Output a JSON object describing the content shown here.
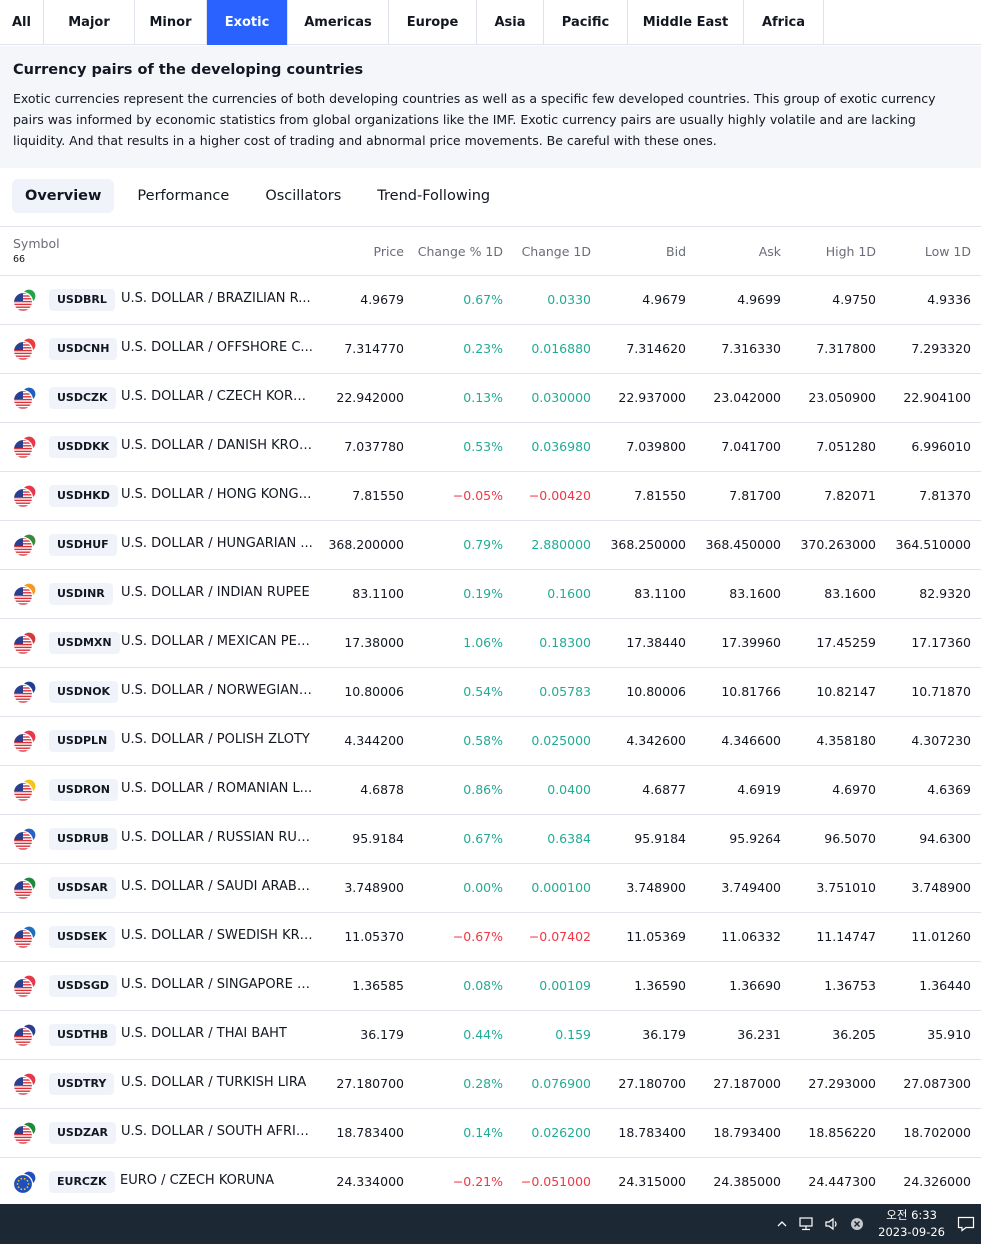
{
  "region_tabs": [
    {
      "label": "All"
    },
    {
      "label": "Major"
    },
    {
      "label": "Minor"
    },
    {
      "label": "Exotic"
    },
    {
      "label": "Americas"
    },
    {
      "label": "Europe"
    },
    {
      "label": "Asia"
    },
    {
      "label": "Pacific"
    },
    {
      "label": "Middle East"
    },
    {
      "label": "Africa"
    }
  ],
  "active_region": "Exotic",
  "description": {
    "title": "Currency pairs of the developing countries",
    "text": "Exotic currencies represent the currencies of both developing countries as well as a specific few developed countries. This group of exotic currency pairs was informed by economic statistics from global organizations like the IMF. Exotic currency pairs are usually highly volatile and are lacking liquidity. And that results in a higher cost of trading and abnormal price movements. Be careful with these ones."
  },
  "view_tabs": [
    {
      "label": "Overview"
    },
    {
      "label": "Performance"
    },
    {
      "label": "Oscillators"
    },
    {
      "label": "Trend-Following"
    }
  ],
  "active_view": "Overview",
  "table": {
    "symbol_header": "Symbol",
    "symbol_count": "66",
    "columns": [
      "Price",
      "Change % 1D",
      "Change 1D",
      "Bid",
      "Ask",
      "High 1D",
      "Low 1D"
    ],
    "rows": [
      {
        "ticker": "USDBRL",
        "name": "U.S. DOLLAR / BRAZILIAN R...",
        "price": "4.9679",
        "chg_pct": "0.67%",
        "chg": "0.0330",
        "bid": "4.9679",
        "ask": "4.9699",
        "high": "4.9750",
        "low": "4.9336",
        "dir": "up",
        "flag_color": "#22a548"
      },
      {
        "ticker": "USDCNH",
        "name": "U.S. DOLLAR / OFFSHORE C...",
        "price": "7.314770",
        "chg_pct": "0.23%",
        "chg": "0.016880",
        "bid": "7.314620",
        "ask": "7.316330",
        "high": "7.317800",
        "low": "7.293320",
        "dir": "up",
        "flag_color": "#ee3a3a"
      },
      {
        "ticker": "USDCZK",
        "name": "U.S. DOLLAR / CZECH KORU...",
        "price": "22.942000",
        "chg_pct": "0.13%",
        "chg": "0.030000",
        "bid": "22.937000",
        "ask": "23.042000",
        "high": "23.050900",
        "low": "22.904100",
        "dir": "up",
        "flag_color": "#1f5fbf"
      },
      {
        "ticker": "USDDKK",
        "name": "U.S. DOLLAR / DANISH KRONE",
        "price": "7.037780",
        "chg_pct": "0.53%",
        "chg": "0.036980",
        "bid": "7.039800",
        "ask": "7.041700",
        "high": "7.051280",
        "low": "6.996010",
        "dir": "up",
        "flag_color": "#e8374a"
      },
      {
        "ticker": "USDHKD",
        "name": "U.S. DOLLAR / HONG KONG ...",
        "price": "7.81550",
        "chg_pct": "−0.05%",
        "chg": "−0.00420",
        "bid": "7.81550",
        "ask": "7.81700",
        "high": "7.82071",
        "low": "7.81370",
        "dir": "down",
        "flag_color": "#e8374a"
      },
      {
        "ticker": "USDHUF",
        "name": "U.S. DOLLAR / HUNGARIAN ...",
        "price": "368.200000",
        "chg_pct": "0.79%",
        "chg": "2.880000",
        "bid": "368.250000",
        "ask": "368.450000",
        "high": "370.263000",
        "low": "364.510000",
        "dir": "up",
        "flag_color": "#3a8a3a"
      },
      {
        "ticker": "USDINR",
        "name": "U.S. DOLLAR / INDIAN RUPEE",
        "price": "83.1100",
        "chg_pct": "0.19%",
        "chg": "0.1600",
        "bid": "83.1100",
        "ask": "83.1600",
        "high": "83.1600",
        "low": "82.9320",
        "dir": "up",
        "flag_color": "#f59a22"
      },
      {
        "ticker": "USDMXN",
        "name": "U.S. DOLLAR / MEXICAN PESO",
        "price": "17.38000",
        "chg_pct": "1.06%",
        "chg": "0.18300",
        "bid": "17.38440",
        "ask": "17.39960",
        "high": "17.45259",
        "low": "17.17360",
        "dir": "up",
        "flag_color": "#d33a3a"
      },
      {
        "ticker": "USDNOK",
        "name": "U.S. DOLLAR / NORWEGIAN ...",
        "price": "10.80006",
        "chg_pct": "0.54%",
        "chg": "0.05783",
        "bid": "10.80006",
        "ask": "10.81766",
        "high": "10.82147",
        "low": "10.71870",
        "dir": "up",
        "flag_color": "#1f3f8f"
      },
      {
        "ticker": "USDPLN",
        "name": "U.S. DOLLAR / POLISH ZLOTY",
        "price": "4.344200",
        "chg_pct": "0.58%",
        "chg": "0.025000",
        "bid": "4.342600",
        "ask": "4.346600",
        "high": "4.358180",
        "low": "4.307230",
        "dir": "up",
        "flag_color": "#e8374a"
      },
      {
        "ticker": "USDRON",
        "name": "U.S. DOLLAR / ROMANIAN L...",
        "price": "4.6878",
        "chg_pct": "0.86%",
        "chg": "0.0400",
        "bid": "4.6877",
        "ask": "4.6919",
        "high": "4.6970",
        "low": "4.6369",
        "dir": "up",
        "flag_color": "#f5c518"
      },
      {
        "ticker": "USDRUB",
        "name": "U.S. DOLLAR / RUSSIAN RUB...",
        "price": "95.9184",
        "chg_pct": "0.67%",
        "chg": "0.6384",
        "bid": "95.9184",
        "ask": "95.9264",
        "high": "96.5070",
        "low": "94.6300",
        "dir": "up",
        "flag_color": "#2b5fc5"
      },
      {
        "ticker": "USDSAR",
        "name": "U.S. DOLLAR / SAUDI ARABI...",
        "price": "3.748900",
        "chg_pct": "0.00%",
        "chg": "0.000100",
        "bid": "3.748900",
        "ask": "3.749400",
        "high": "3.751010",
        "low": "3.748900",
        "dir": "up",
        "flag_color": "#1c8a3a"
      },
      {
        "ticker": "USDSEK",
        "name": "U.S. DOLLAR / SWEDISH KRO...",
        "price": "11.05370",
        "chg_pct": "−0.67%",
        "chg": "−0.07402",
        "bid": "11.05369",
        "ask": "11.06332",
        "high": "11.14747",
        "low": "11.01260",
        "dir": "down",
        "flag_color": "#1f6fbf"
      },
      {
        "ticker": "USDSGD",
        "name": "U.S. DOLLAR / SINGAPORE D...",
        "price": "1.36585",
        "chg_pct": "0.08%",
        "chg": "0.00109",
        "bid": "1.36590",
        "ask": "1.36690",
        "high": "1.36753",
        "low": "1.36440",
        "dir": "up",
        "flag_color": "#e8374a"
      },
      {
        "ticker": "USDTHB",
        "name": "U.S. DOLLAR / THAI BAHT",
        "price": "36.179",
        "chg_pct": "0.44%",
        "chg": "0.159",
        "bid": "36.179",
        "ask": "36.231",
        "high": "36.205",
        "low": "35.910",
        "dir": "up",
        "flag_color": "#2b3f8f"
      },
      {
        "ticker": "USDTRY",
        "name": "U.S. DOLLAR / TURKISH LIRA",
        "price": "27.180700",
        "chg_pct": "0.28%",
        "chg": "0.076900",
        "bid": "27.180700",
        "ask": "27.187000",
        "high": "27.293000",
        "low": "27.087300",
        "dir": "up",
        "flag_color": "#e8374a"
      },
      {
        "ticker": "USDZAR",
        "name": "U.S. DOLLAR / SOUTH AFRIC...",
        "price": "18.783400",
        "chg_pct": "0.14%",
        "chg": "0.026200",
        "bid": "18.783400",
        "ask": "18.793400",
        "high": "18.856220",
        "low": "18.702000",
        "dir": "up",
        "flag_color": "#1c8a3a"
      },
      {
        "ticker": "EURCZK",
        "name": "EURO / CZECH KORUNA",
        "price": "24.334000",
        "chg_pct": "−0.21%",
        "chg": "−0.051000",
        "bid": "24.315000",
        "ask": "24.385000",
        "high": "24.447300",
        "low": "24.326000",
        "dir": "down",
        "flag_color": "#1f4fbf"
      }
    ]
  },
  "taskbar": {
    "time": "오전 6:33",
    "date": "2023-09-26"
  }
}
